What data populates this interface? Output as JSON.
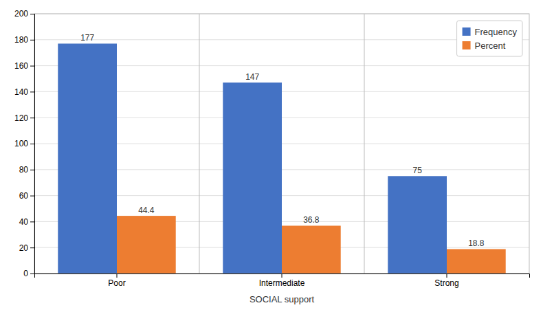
{
  "chart_data": {
    "type": "bar",
    "xlabel": "SOCIAL support",
    "categories": [
      "Poor",
      "Intermediate",
      "Strong"
    ],
    "series": [
      {
        "name": "Frequency",
        "color": "#4472C4",
        "values": [
          177,
          147,
          75
        ]
      },
      {
        "name": "Percent",
        "color": "#ED7D31",
        "values": [
          44.4,
          36.8,
          18.8
        ]
      }
    ],
    "ylim": [
      0,
      200
    ],
    "yticks": [
      0,
      20,
      40,
      60,
      80,
      100,
      120,
      140,
      160,
      180,
      200
    ],
    "grid": true,
    "legend": "upper right",
    "data_labels": true
  }
}
